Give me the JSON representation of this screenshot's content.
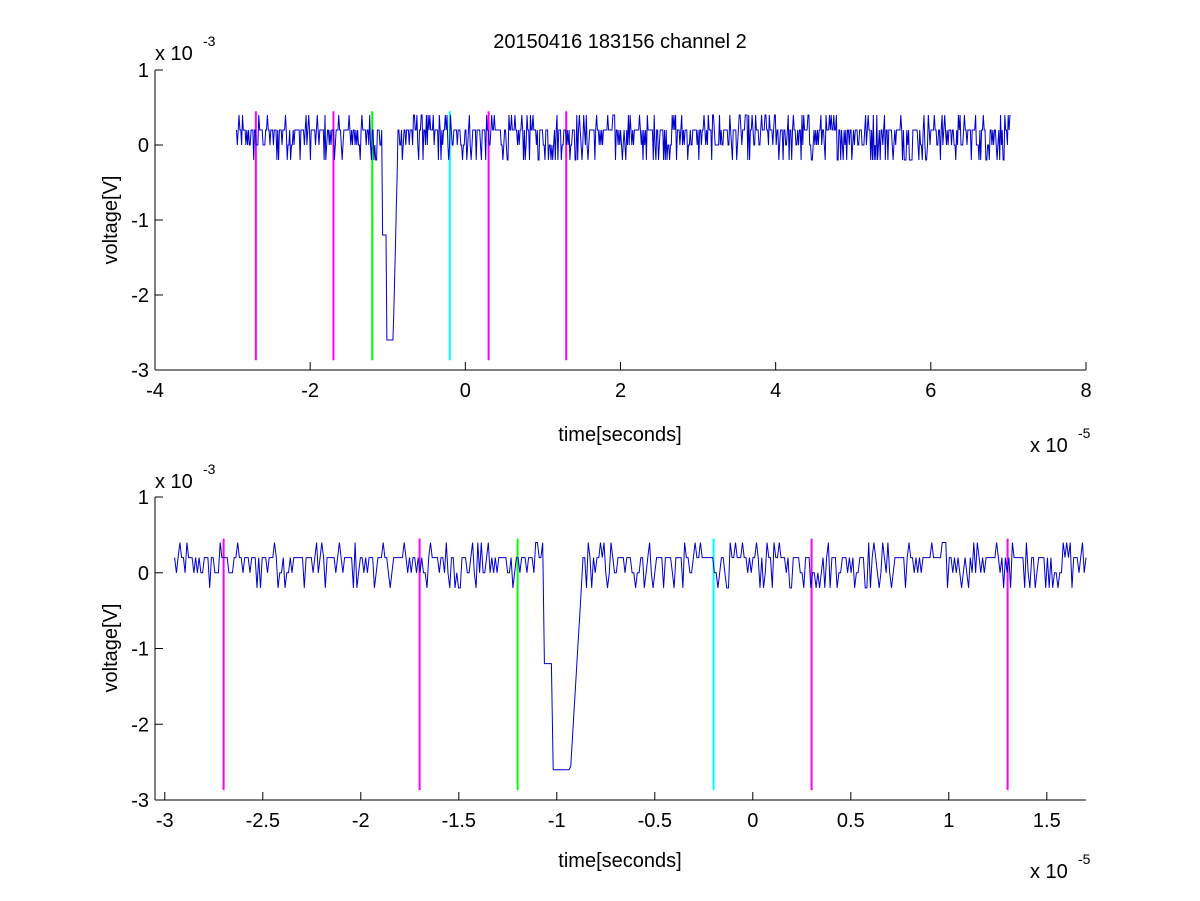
{
  "chart_data": [
    {
      "type": "line",
      "title": "20150416 183156 channel 2",
      "xlabel": "time[seconds]",
      "ylabel": "voltage[V]",
      "x_multiplier": "x 10",
      "x_exponent": "-5",
      "y_multiplier": "x 10",
      "y_exponent": "-3",
      "xlim": [
        -4,
        8
      ],
      "ylim": [
        -3,
        1
      ],
      "xticks": [
        "-4",
        "-2",
        "0",
        "2",
        "4",
        "6",
        "8"
      ],
      "xtick_values": [
        -4,
        -2,
        0,
        2,
        4,
        6,
        8
      ],
      "yticks": [
        "1",
        "0",
        "-1",
        "-2",
        "-3"
      ],
      "ytick_values": [
        1,
        0,
        -1,
        -2,
        -3
      ],
      "series": [
        {
          "color": "#0000cc",
          "x_range": [
            -2.95,
            7.02
          ],
          "baseline": 0.1,
          "noise_amplitude": 0.25,
          "dip": {
            "x": -0.99,
            "min": -2.6
          }
        }
      ],
      "markers": [
        {
          "x": -2.7,
          "color": "#ff00ff"
        },
        {
          "x": -1.7,
          "color": "#ff00ff"
        },
        {
          "x": -1.2,
          "color": "#00ff00"
        },
        {
          "x": -0.2,
          "color": "#00ffff"
        },
        {
          "x": 0.3,
          "color": "#ff00ff"
        },
        {
          "x": 1.3,
          "color": "#ff00ff"
        }
      ],
      "marker_y_range": [
        -2.87,
        0.45
      ]
    },
    {
      "type": "line",
      "title": "",
      "xlabel": "time[seconds]",
      "ylabel": "voltage[V]",
      "x_multiplier": "x 10",
      "x_exponent": "-5",
      "y_multiplier": "x 10",
      "y_exponent": "-3",
      "xlim": [
        -3.05,
        1.7
      ],
      "ylim": [
        -3,
        1
      ],
      "xticks": [
        "-3",
        "-2.5",
        "-2",
        "-1.5",
        "-1",
        "-0.5",
        "0",
        "0.5",
        "1",
        "1.5"
      ],
      "xtick_values": [
        -3,
        -2.5,
        -2,
        -1.5,
        -1,
        -0.5,
        0,
        0.5,
        1,
        1.5
      ],
      "yticks": [
        "1",
        "0",
        "-1",
        "-2",
        "-3"
      ],
      "ytick_values": [
        1,
        0,
        -1,
        -2,
        -3
      ],
      "series": [
        {
          "color": "#0000cc",
          "x_range": [
            -2.95,
            1.7
          ],
          "baseline": 0.1,
          "noise_amplitude": 0.25,
          "dip": {
            "x": -0.99,
            "min": -2.6
          }
        }
      ],
      "markers": [
        {
          "x": -2.7,
          "color": "#ff00ff"
        },
        {
          "x": -1.7,
          "color": "#ff00ff"
        },
        {
          "x": -1.2,
          "color": "#00ff00"
        },
        {
          "x": -0.2,
          "color": "#00ffff"
        },
        {
          "x": 0.3,
          "color": "#ff00ff"
        },
        {
          "x": 1.3,
          "color": "#ff00ff"
        }
      ],
      "marker_y_range": [
        -2.87,
        0.45
      ]
    }
  ]
}
